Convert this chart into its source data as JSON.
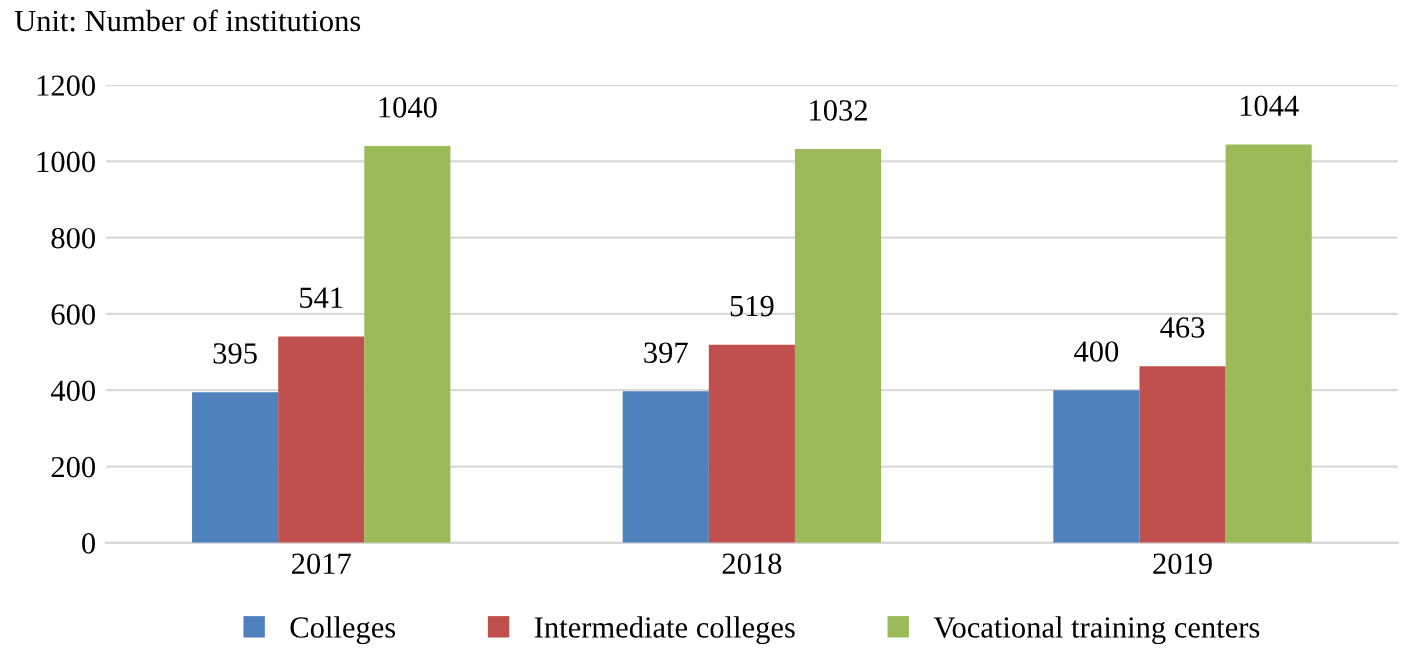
{
  "chart_data": {
    "type": "bar",
    "annotations": [
      "Unit: Number of institutions"
    ],
    "categories": [
      "2017",
      "2018",
      "2019"
    ],
    "series": [
      {
        "name": "Colleges",
        "color": "#4f81bd",
        "values": [
          395,
          397,
          400
        ]
      },
      {
        "name": "Intermediate colleges",
        "color": "#c0504d",
        "values": [
          541,
          519,
          463
        ]
      },
      {
        "name": "Vocational training centers",
        "color": "#9bbb59",
        "values": [
          1040,
          1032,
          1044
        ]
      }
    ],
    "ylim": [
      0,
      1200
    ],
    "yticks": [
      0,
      200,
      400,
      600,
      800,
      1000,
      1200
    ],
    "grid": "y",
    "legend": "bottom",
    "data_labels": true
  }
}
